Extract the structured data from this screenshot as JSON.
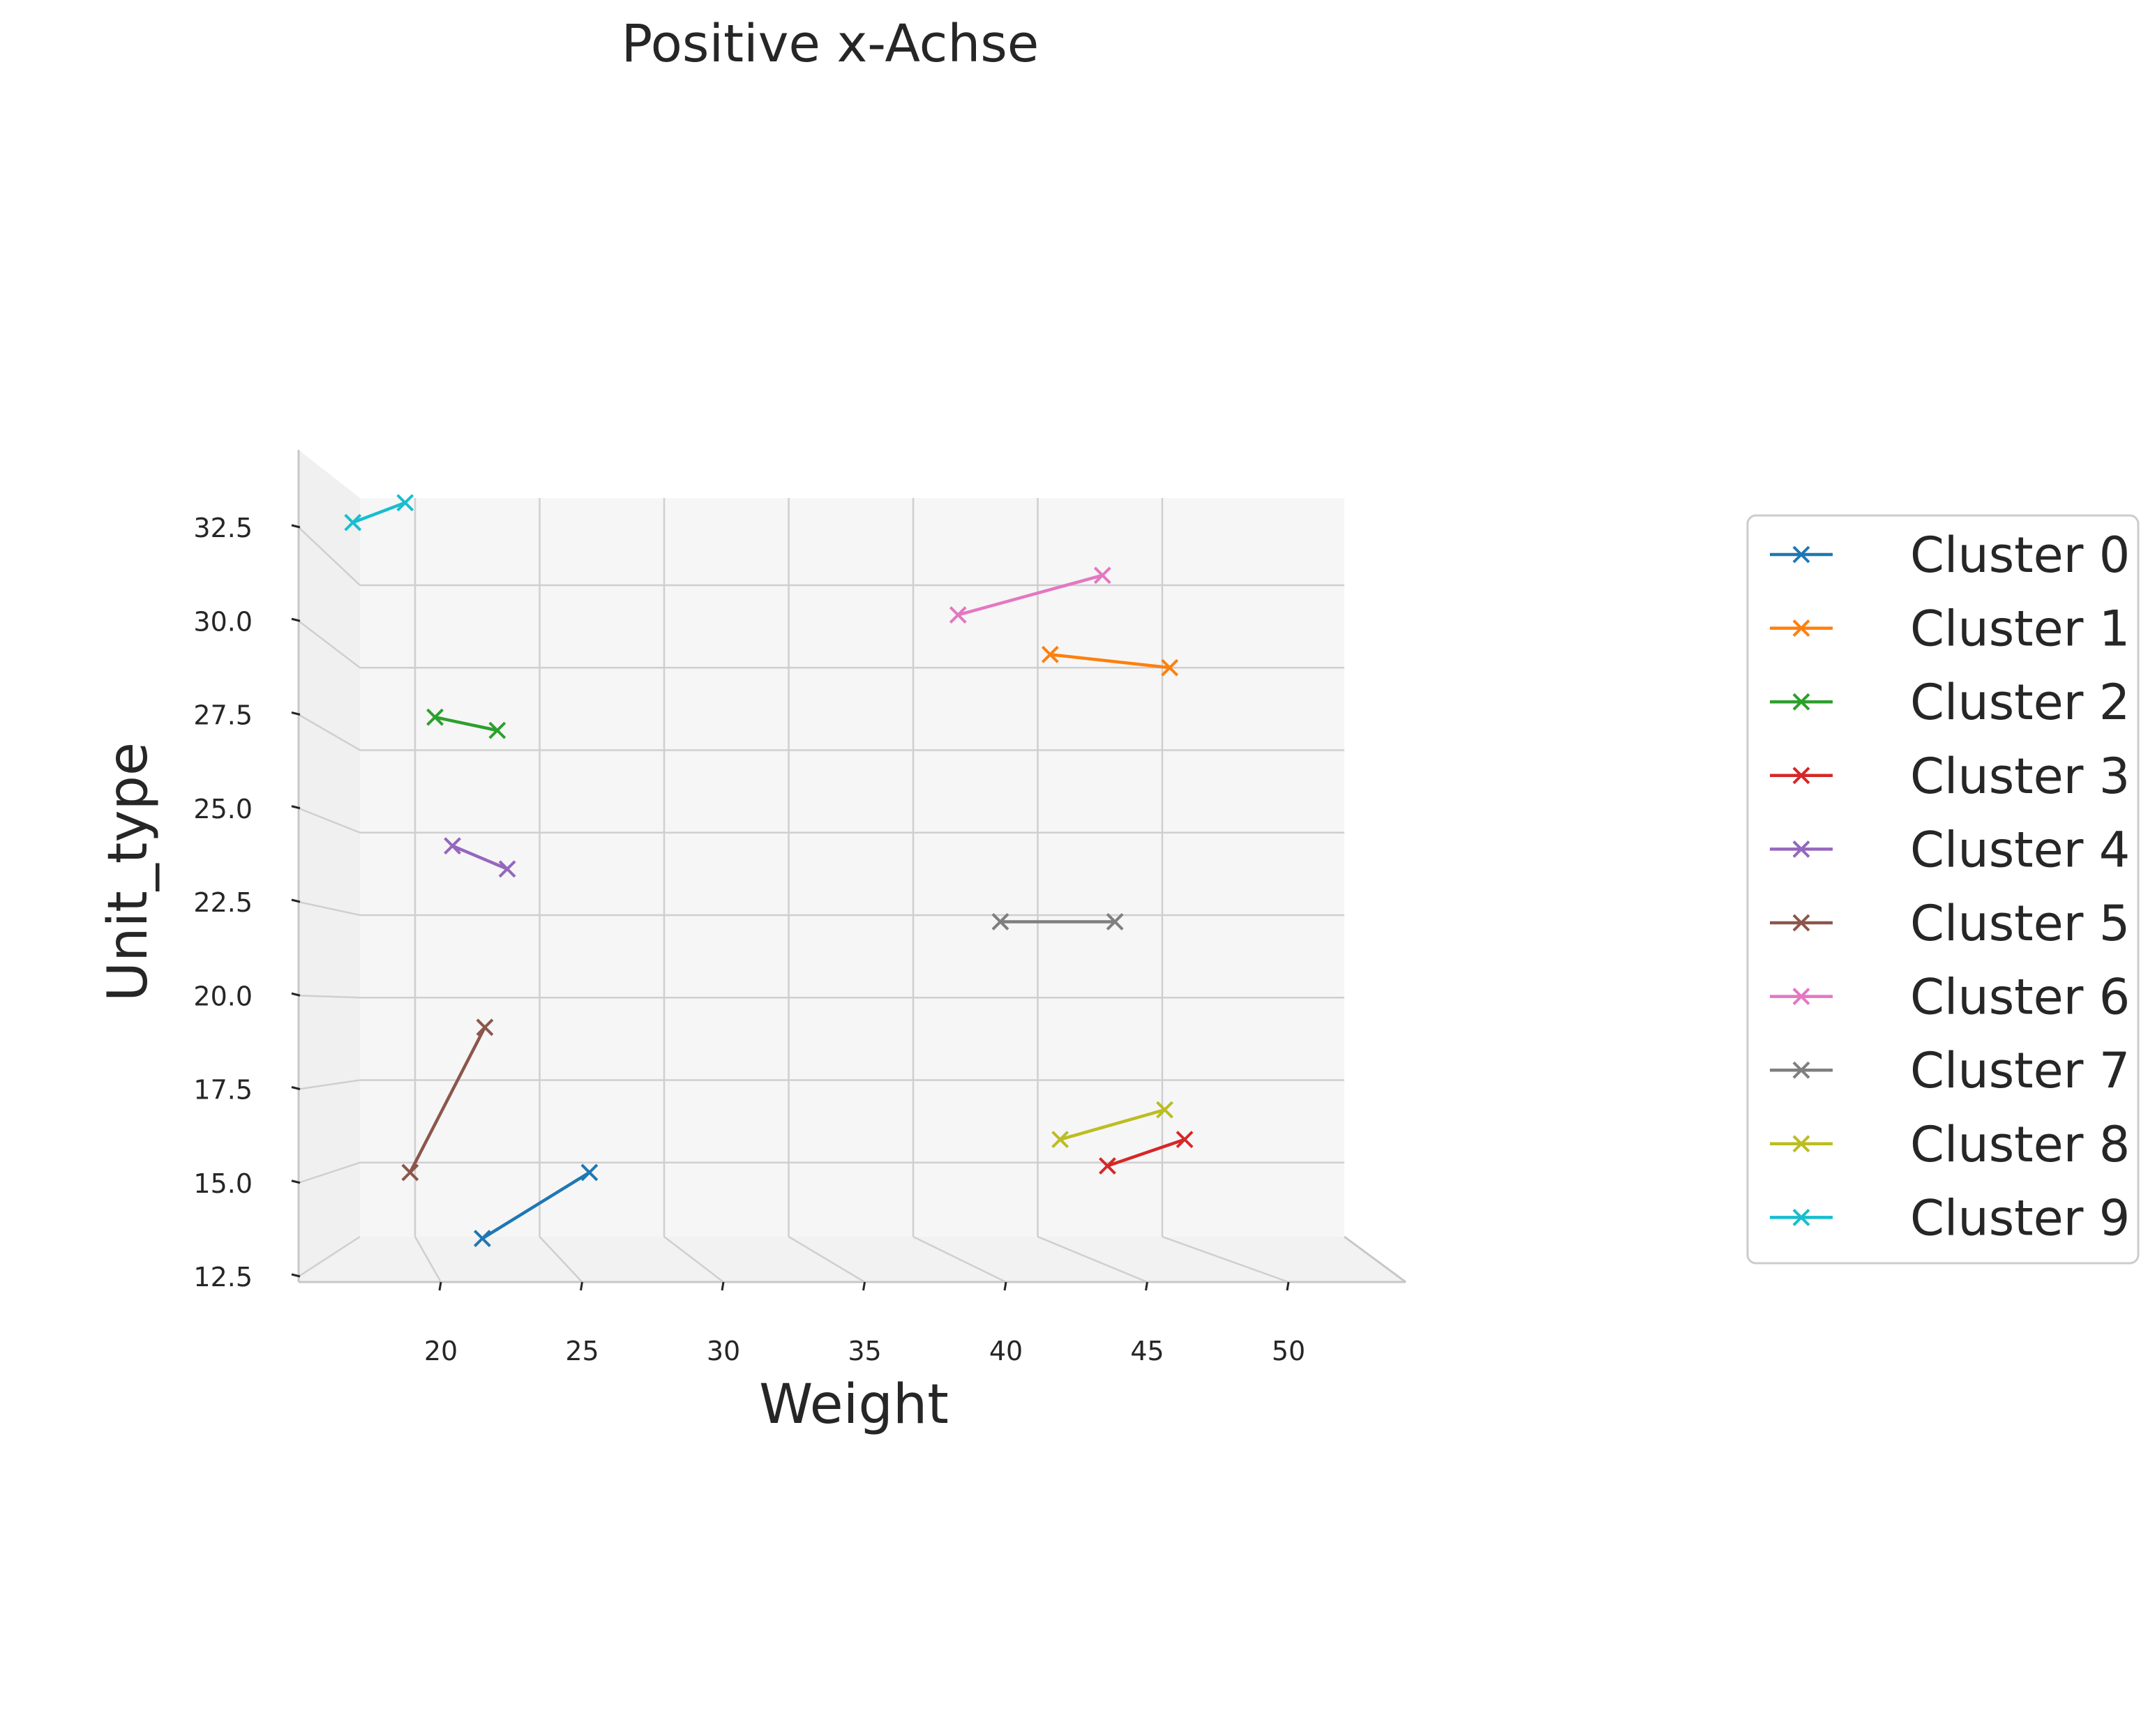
{
  "chart_data": {
    "type": "line",
    "title": "Positive x-Achse",
    "xlabel": "Weight",
    "ylabel": "Unit_type",
    "x_ticks": [
      "20",
      "25",
      "30",
      "35",
      "40",
      "45",
      "50"
    ],
    "y_ticks": [
      "12.5",
      "15.0",
      "17.5",
      "20.0",
      "22.5",
      "25.0",
      "27.5",
      "30.0",
      "32.5"
    ],
    "xlim": [
      15,
      55
    ],
    "ylim": [
      12.5,
      35
    ],
    "marker": "x",
    "legend_position": "right",
    "grid": true,
    "series": [
      {
        "name": "Cluster 0",
        "color": "#1f77b4",
        "points": [
          [
            22.7,
            12.7
          ],
          [
            27.0,
            14.7
          ]
        ]
      },
      {
        "name": "Cluster 1",
        "color": "#ff7f0e",
        "points": [
          [
            45.5,
            30.4
          ],
          [
            50.3,
            30.0
          ]
        ]
      },
      {
        "name": "Cluster 2",
        "color": "#2ca02c",
        "points": [
          [
            20.8,
            28.5
          ],
          [
            23.3,
            28.1
          ]
        ]
      },
      {
        "name": "Cluster 3",
        "color": "#d62728",
        "points": [
          [
            47.8,
            14.9
          ],
          [
            50.9,
            15.7
          ]
        ]
      },
      {
        "name": "Cluster 4",
        "color": "#9467bd",
        "points": [
          [
            21.5,
            24.6
          ],
          [
            23.7,
            23.9
          ]
        ]
      },
      {
        "name": "Cluster 5",
        "color": "#8c564b",
        "points": [
          [
            19.8,
            14.7
          ],
          [
            22.8,
            19.1
          ]
        ]
      },
      {
        "name": "Cluster 6",
        "color": "#e377c2",
        "points": [
          [
            41.8,
            31.6
          ],
          [
            47.6,
            32.8
          ]
        ]
      },
      {
        "name": "Cluster 7",
        "color": "#7f7f7f",
        "points": [
          [
            43.5,
            22.3
          ],
          [
            48.1,
            22.3
          ]
        ]
      },
      {
        "name": "Cluster 8",
        "color": "#bcbd22",
        "points": [
          [
            45.9,
            15.7
          ],
          [
            50.1,
            16.6
          ]
        ]
      },
      {
        "name": "Cluster 9",
        "color": "#17becf",
        "points": [
          [
            17.5,
            34.4
          ],
          [
            19.6,
            35.0
          ]
        ]
      }
    ]
  }
}
